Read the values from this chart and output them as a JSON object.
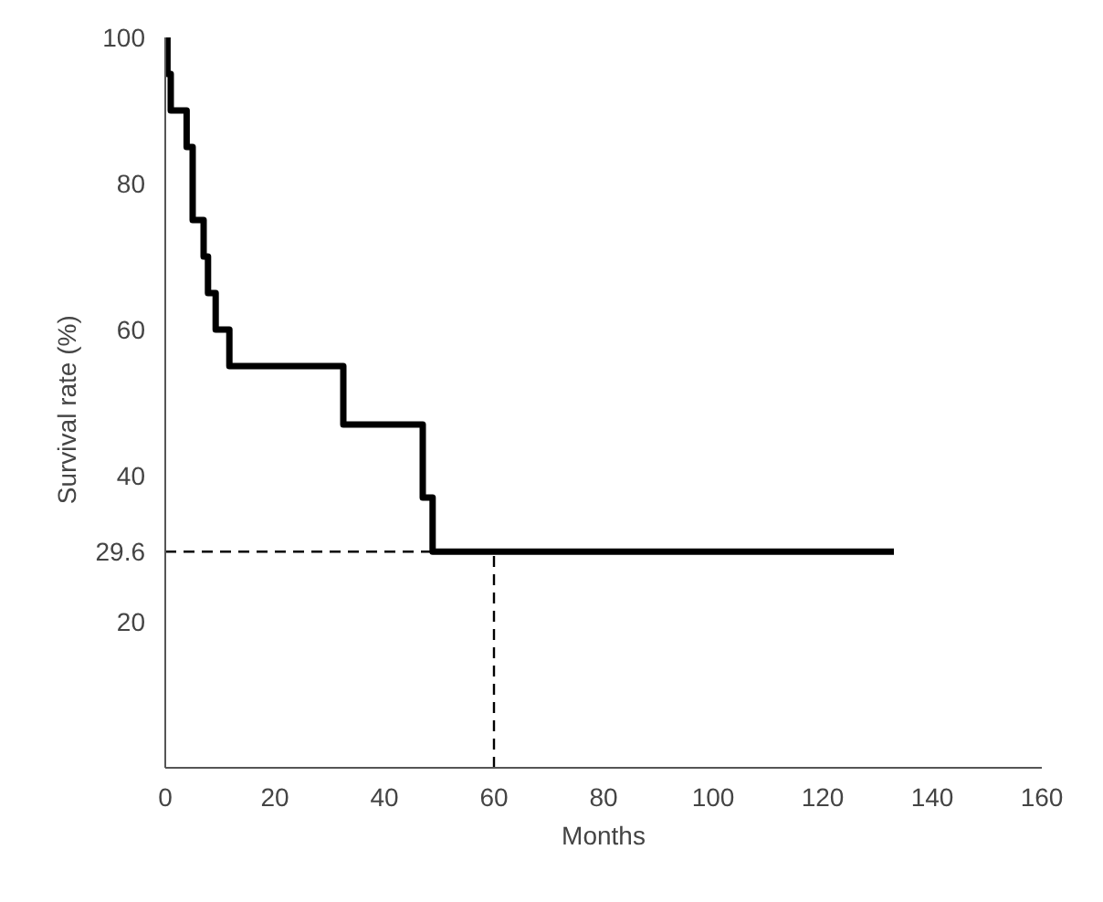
{
  "chart_data": {
    "type": "step",
    "xlabel": "Months",
    "ylabel": "Survival  rate  (%)",
    "x": [
      0,
      0.4,
      1,
      3.9,
      5,
      7,
      7.8,
      9.2,
      11.7,
      32.5,
      47,
      48.8,
      133
    ],
    "series": [
      {
        "color": "#000000",
        "values": [
          100,
          95,
          90,
          85,
          75,
          70,
          65,
          60,
          55,
          47,
          37,
          29.6,
          29.6
        ]
      }
    ],
    "xlim": [
      0,
      160
    ],
    "xticks": [
      0,
      20,
      40,
      60,
      80,
      100,
      120,
      140,
      160
    ],
    "ylim": [
      0,
      100
    ],
    "yticks": [
      20,
      {
        "value": 29.6,
        "label": "29.6"
      },
      40,
      60,
      80,
      100
    ],
    "ref_lines": [
      {
        "axis": "y",
        "value": 29.6,
        "line_style": "dashed"
      },
      {
        "axis": "x",
        "value": 60,
        "line_style": "dashed"
      }
    ],
    "grid": false
  }
}
